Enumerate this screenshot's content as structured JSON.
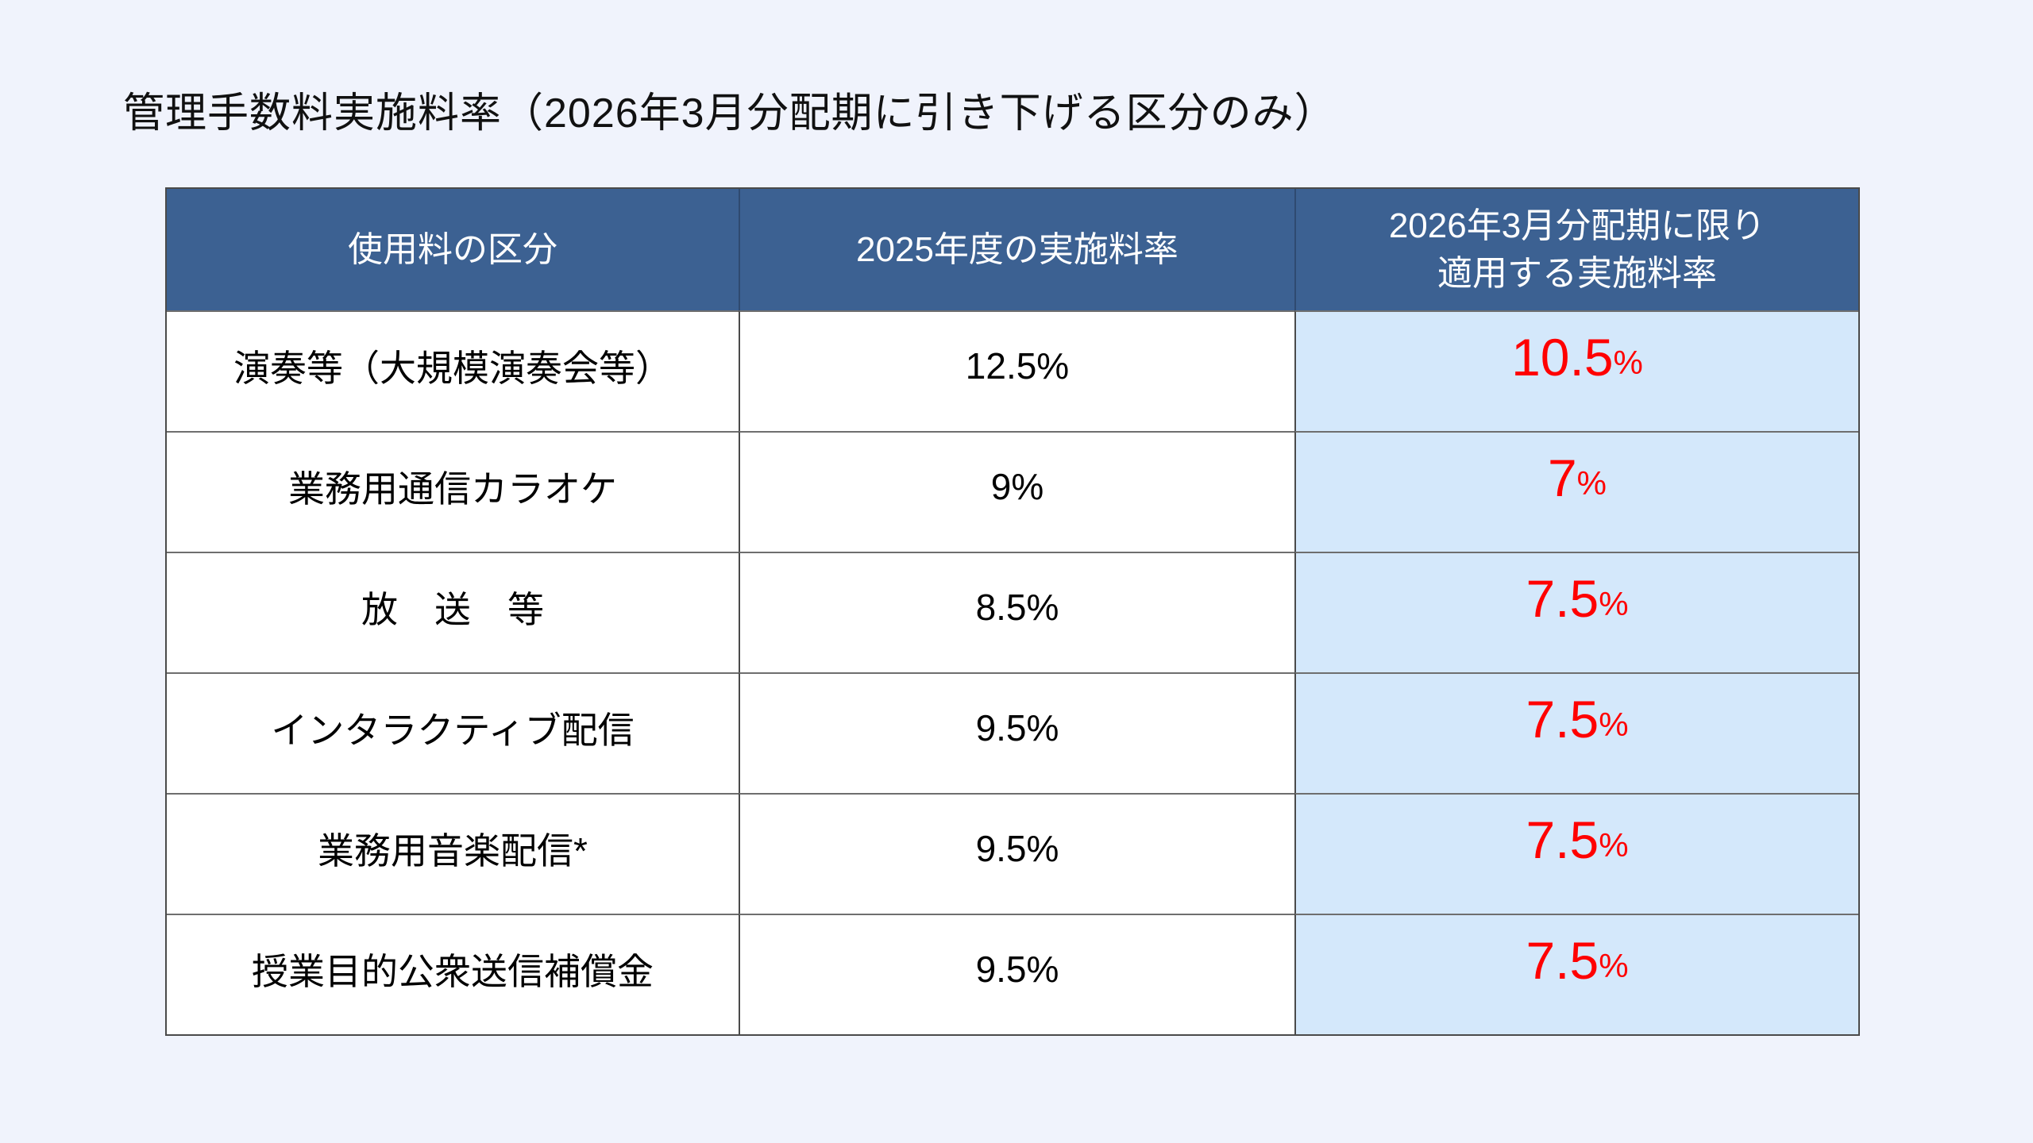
{
  "title": "管理手数料実施料率（2026年3月分配期に引き下げる区分のみ）",
  "table": {
    "headers": {
      "category": "使用料の区分",
      "rate_2025": "2025年度の実施料率",
      "rate_2026_line1": "2026年3月分配期に限り",
      "rate_2026_line2": "適用する実施料率"
    },
    "rows": [
      {
        "category": "演奏等（大規模演奏会等）",
        "rate_2025": "12.5%",
        "new_rate_value": "10.5",
        "new_rate_unit": "%"
      },
      {
        "category": "業務用通信カラオケ",
        "rate_2025": "9%",
        "new_rate_value": "7",
        "new_rate_unit": "%"
      },
      {
        "category": "放　送　等",
        "rate_2025": "8.5%",
        "new_rate_value": "7.5",
        "new_rate_unit": "%"
      },
      {
        "category": "インタラクティブ配信",
        "rate_2025": "9.5%",
        "new_rate_value": "7.5",
        "new_rate_unit": "%"
      },
      {
        "category": "業務用音楽配信*",
        "rate_2025": "9.5%",
        "new_rate_value": "7.5",
        "new_rate_unit": "%"
      },
      {
        "category": "授業目的公衆送信補償金",
        "rate_2025": "9.5%",
        "new_rate_value": "7.5",
        "new_rate_unit": "%"
      }
    ]
  },
  "colors": {
    "page_background": "#F0F3FC",
    "header_background": "#3C6192",
    "header_text": "#FFFFFF",
    "highlight_cell_background": "#D4E8FB",
    "highlight_text": "#FF0000",
    "body_text": "#000000",
    "border": "#4A4A4A"
  }
}
